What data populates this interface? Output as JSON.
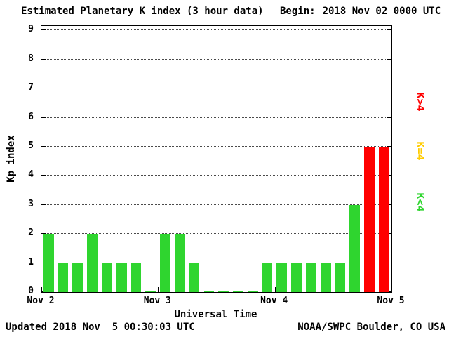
{
  "header": {
    "title": "Estimated Planetary K index (3 hour data)",
    "begin_label": "Begin:",
    "begin_value": "2018 Nov 02 0000 UTC"
  },
  "footer": {
    "updated": "Updated 2018 Nov  5 00:30:03 UTC",
    "source": "NOAA/SWPC Boulder, CO USA"
  },
  "chart_data": {
    "type": "bar",
    "title": "Estimated Planetary K index (3 hour data)",
    "xlabel": "Universal Time",
    "ylabel": "Kp index",
    "ylim": [
      0,
      9
    ],
    "yticks": [
      0,
      1,
      2,
      3,
      4,
      5,
      6,
      7,
      8,
      9
    ],
    "x_day_labels": [
      "Nov 2",
      "Nov 3",
      "Nov 4",
      "Nov 5"
    ],
    "bars_per_day": 8,
    "bar_interval_hours": 3,
    "values": [
      2,
      1,
      1,
      2,
      1,
      1,
      1,
      0,
      2,
      2,
      1,
      0,
      0,
      0,
      0,
      1,
      1,
      1,
      1,
      1,
      1,
      3,
      5,
      5
    ],
    "bar_color_rules": {
      "below4": "#2fd52f",
      "equal4": "#ffcc00",
      "above4": "#ff0000"
    },
    "legend": [
      {
        "label": "K>4",
        "color": "#ff0000"
      },
      {
        "label": "K=4",
        "color": "#ffcc00"
      },
      {
        "label": "K<4",
        "color": "#2fd52f"
      }
    ],
    "grid": "dotted horizontal",
    "legend_position": "right"
  }
}
